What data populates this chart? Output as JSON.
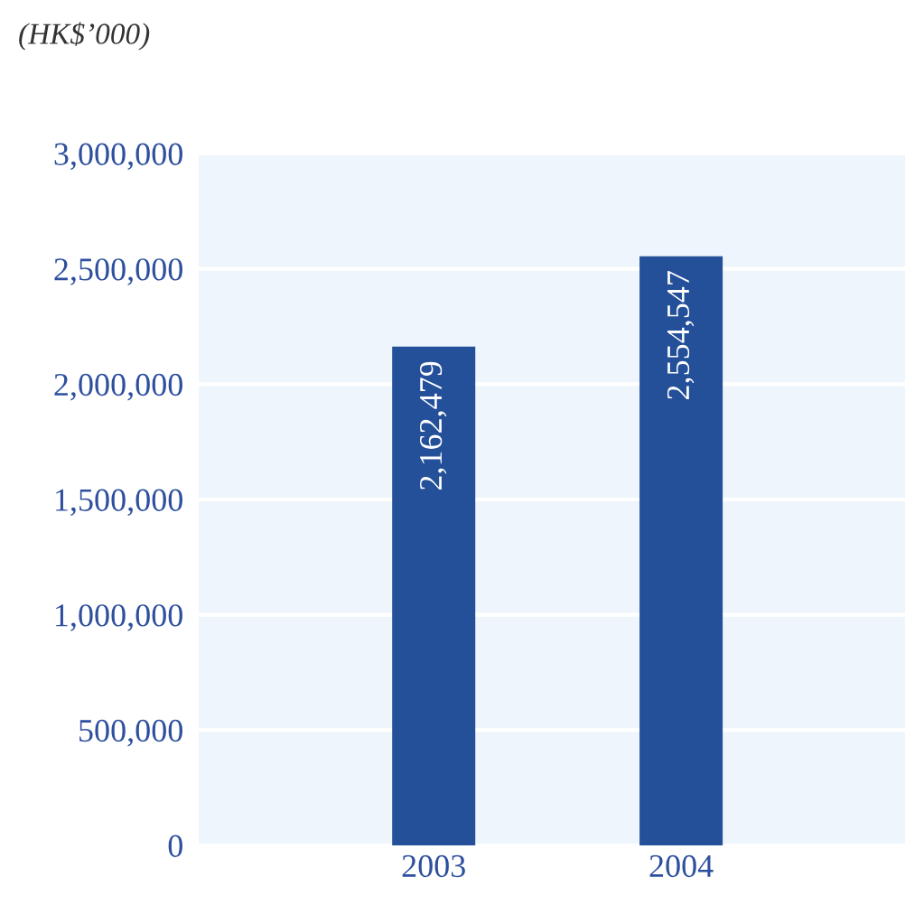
{
  "chart_data": {
    "type": "bar",
    "ylabel": "(HK$’000)",
    "categories": [
      "2003",
      "2004"
    ],
    "values": [
      2162479,
      2554547
    ],
    "color": "#244f99",
    "ylim": [
      0,
      3000000
    ],
    "yticks": [
      {
        "value": 0,
        "label": "0"
      },
      {
        "value": 500000,
        "label": "500,000"
      },
      {
        "value": 1000000,
        "label": "1,000,000"
      },
      {
        "value": 1500000,
        "label": "1,500,000"
      },
      {
        "value": 2000000,
        "label": "2,000,000"
      },
      {
        "value": 2500000,
        "label": "2,500,000"
      },
      {
        "value": 3000000,
        "label": "3,000,000"
      }
    ],
    "value_labels": [
      "2,162,479",
      "2,554,547"
    ],
    "grid": "y"
  }
}
